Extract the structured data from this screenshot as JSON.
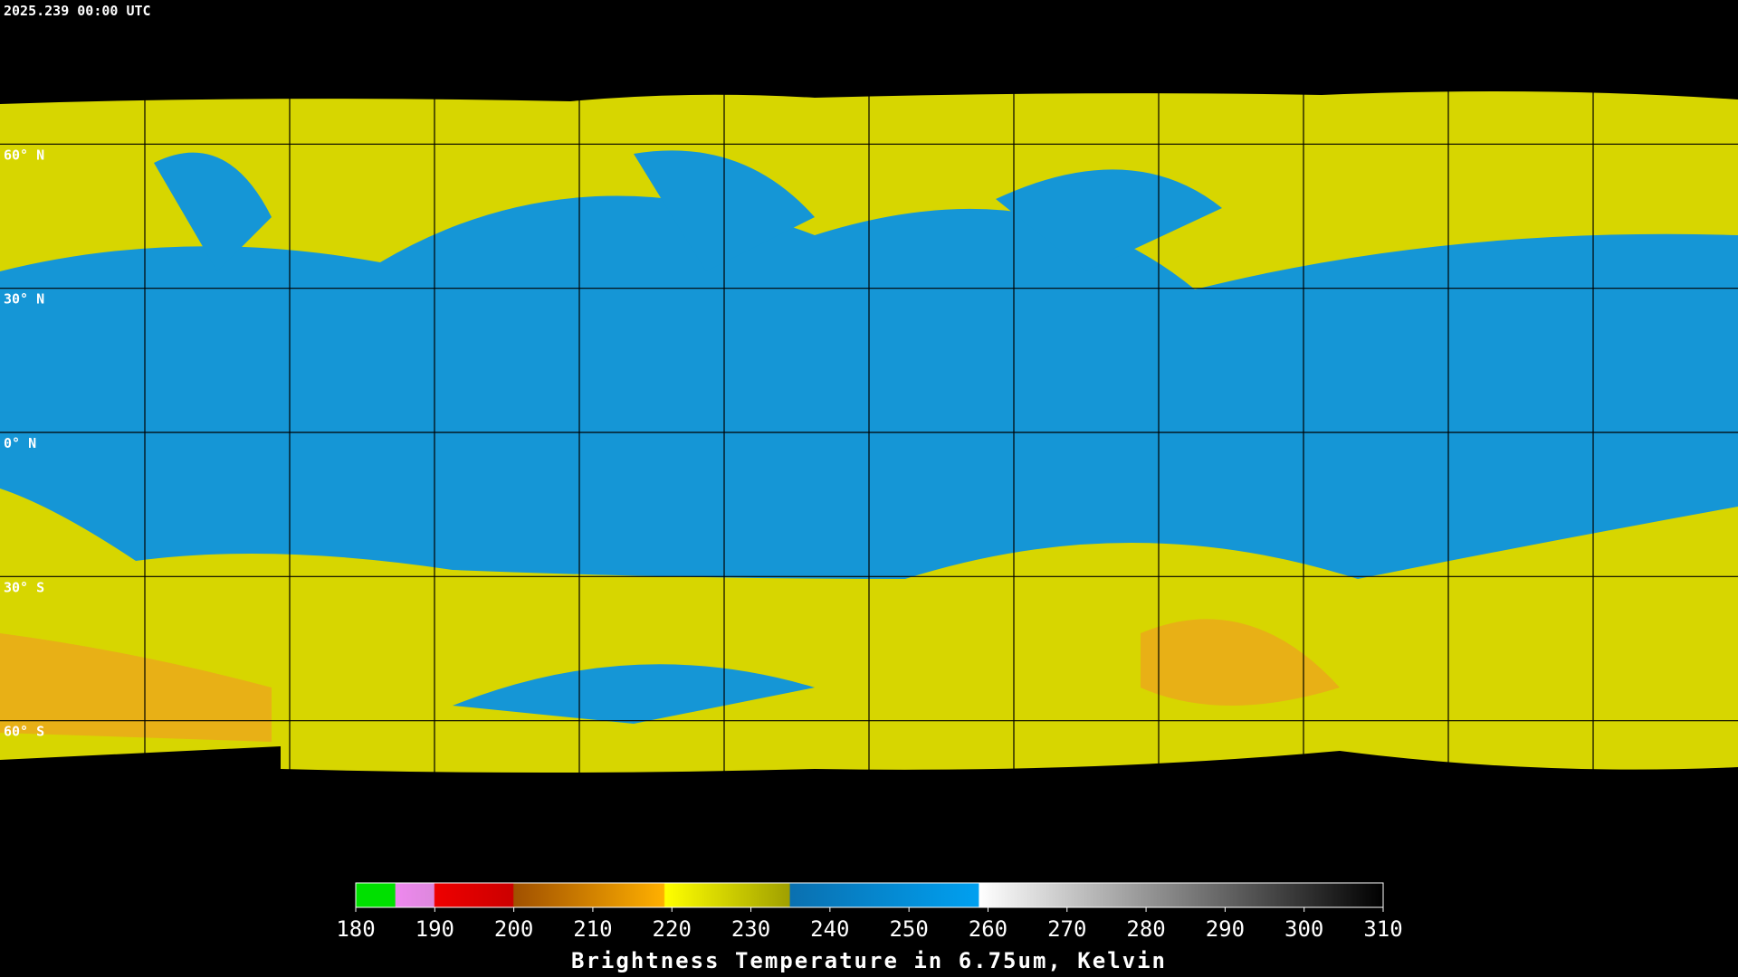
{
  "timestamp": "2025.239 00:00 UTC",
  "lat_lines": [
    {
      "value": 60,
      "label": "60° N"
    },
    {
      "value": 30,
      "label": "30° N"
    },
    {
      "value": 0,
      "label": "0° N"
    },
    {
      "value": -30,
      "label": "30° S"
    },
    {
      "value": -60,
      "label": "60° S"
    }
  ],
  "colorbar": {
    "title": "Brightness Temperature in 6.75um, Kelvin",
    "lim": [
      180,
      310
    ],
    "ticks": [
      180,
      190,
      200,
      210,
      220,
      230,
      240,
      250,
      260,
      270,
      280,
      290,
      300,
      310
    ]
  }
}
